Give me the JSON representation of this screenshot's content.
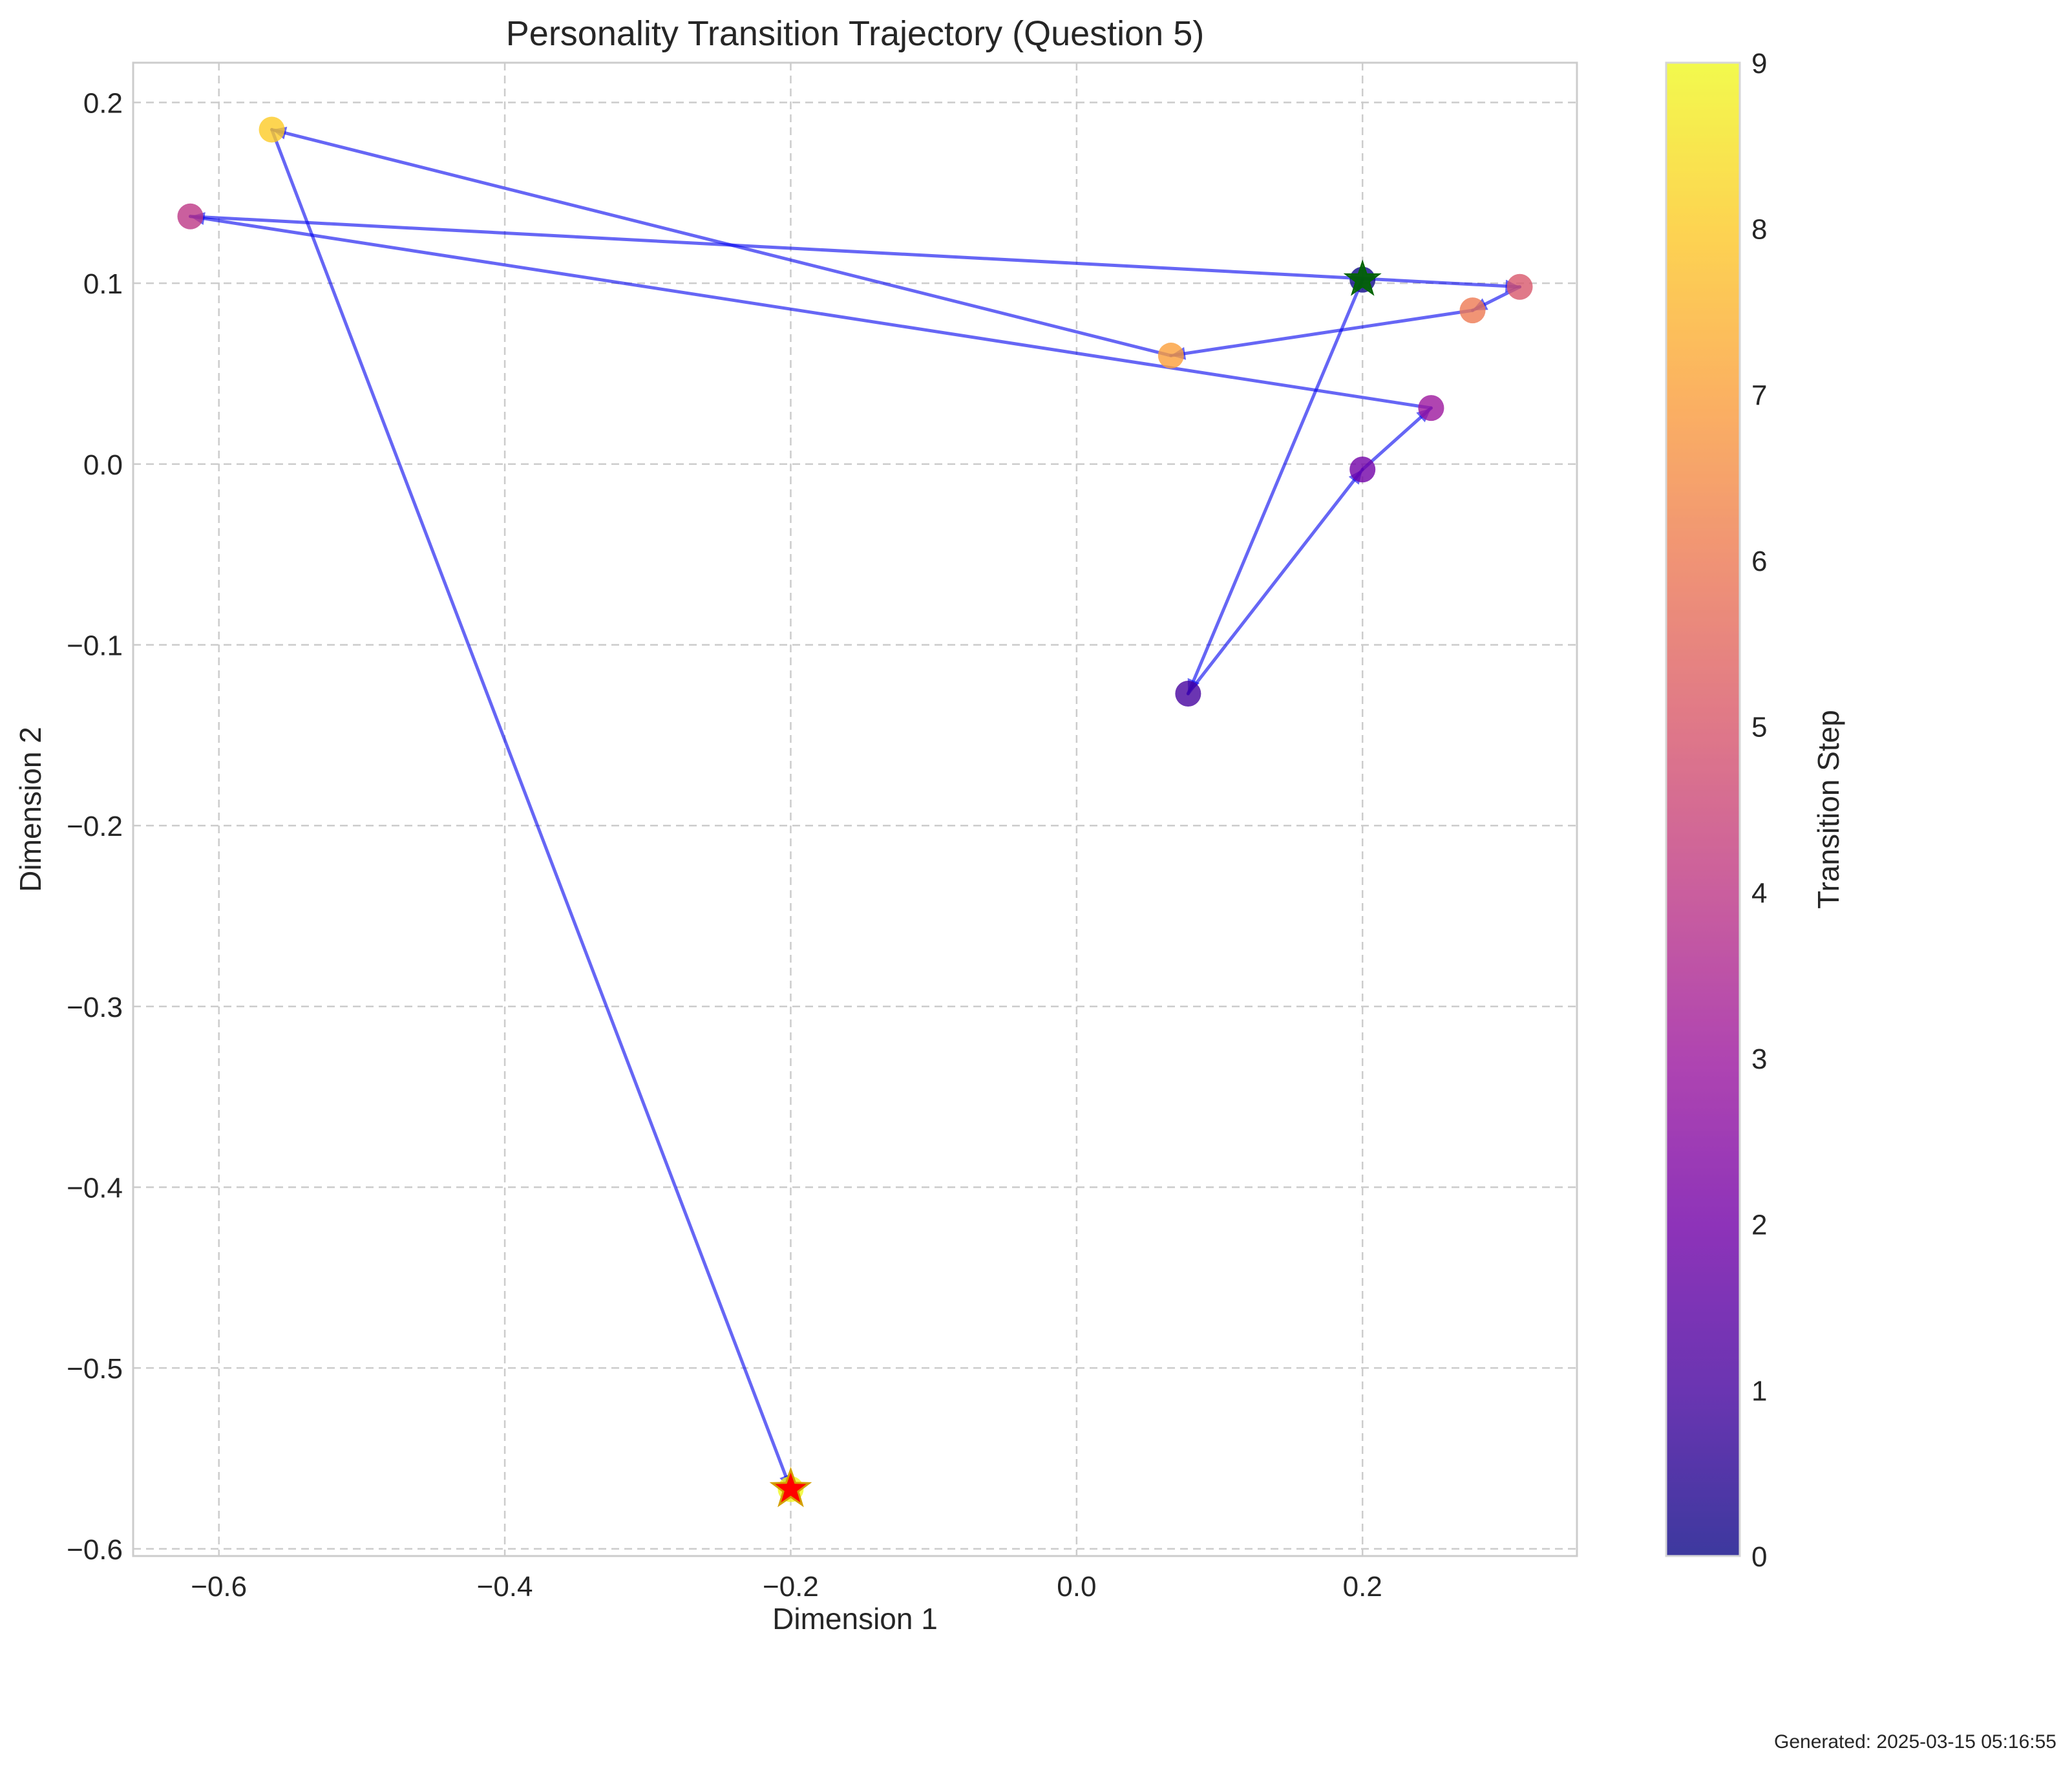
{
  "chart_data": {
    "type": "scatter",
    "title": "Personality Transition Trajectory (Question 5)",
    "xlabel": "Dimension 1",
    "ylabel": "Dimension 2",
    "xlim": [
      -0.66,
      0.35
    ],
    "ylim": [
      -0.604,
      0.222
    ],
    "xticks": [
      -0.6,
      -0.4,
      -0.2,
      0.0,
      0.2
    ],
    "xtick_labels": [
      "−0.6",
      "−0.4",
      "−0.2",
      "0.0",
      "0.2"
    ],
    "yticks": [
      0.2,
      0.1,
      0.0,
      -0.1,
      -0.2,
      -0.3,
      -0.4,
      -0.5,
      -0.6
    ],
    "ytick_labels": [
      "0.2",
      "0.1",
      "0.0",
      "−0.1",
      "−0.2",
      "−0.3",
      "−0.4",
      "−0.5",
      "−0.6"
    ],
    "grid": true,
    "colormap": "plasma",
    "colorbar": {
      "label": "Transition Step",
      "min": 0,
      "max": 9,
      "ticks": [
        0,
        1,
        2,
        3,
        4,
        5,
        6,
        7,
        8,
        9
      ]
    },
    "trajectory_color": "#0000ee",
    "start_marker_color": "#006400",
    "end_marker_color": "#ff0000",
    "end_marker_edge_color": "#d4a000",
    "points": [
      {
        "step": 0,
        "x": 0.2,
        "y": 0.102
      },
      {
        "step": 1,
        "x": 0.078,
        "y": -0.127
      },
      {
        "step": 2,
        "x": 0.2,
        "y": -0.003
      },
      {
        "step": 3,
        "x": 0.248,
        "y": 0.031
      },
      {
        "step": 4,
        "x": -0.62,
        "y": 0.137
      },
      {
        "step": 5,
        "x": 0.31,
        "y": 0.098
      },
      {
        "step": 6,
        "x": 0.277,
        "y": 0.085
      },
      {
        "step": 7,
        "x": 0.066,
        "y": 0.06
      },
      {
        "step": 8,
        "x": -0.563,
        "y": 0.185
      },
      {
        "step": 9,
        "x": -0.2,
        "y": -0.567
      }
    ]
  },
  "footer": {
    "generated_text": "Generated: 2025-03-15 05:16:55"
  }
}
